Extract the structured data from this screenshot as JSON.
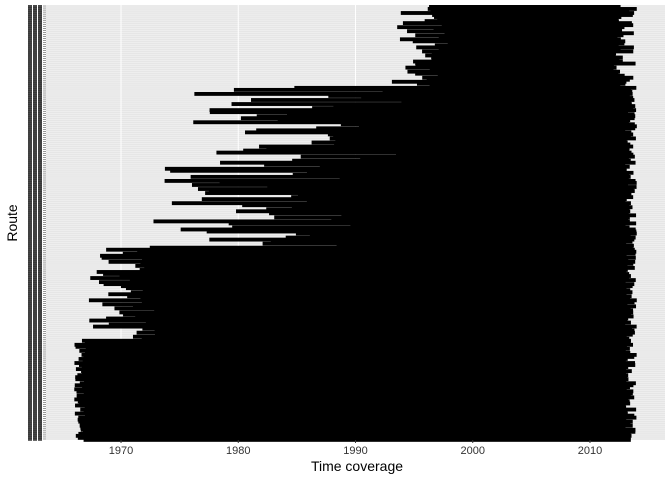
{
  "chart_data": {
    "type": "range-bar",
    "xlabel": "Time coverage",
    "ylabel": "Route",
    "xlim": [
      1963.6,
      2016.4
    ],
    "x_ticks": [
      1970,
      1980,
      1990,
      2000,
      2010
    ],
    "row_count": 215,
    "grid": true,
    "background": "#e6e6e6",
    "bar_color": "#000000",
    "legend": "none",
    "density_note": "Route tick labels are illegible (overplotted). Ranges approximated.",
    "bands": [
      {
        "rows": 40,
        "start": [
          1993,
          1998
        ],
        "end": [
          2012,
          2014
        ]
      },
      {
        "rows": 40,
        "start": [
          1976,
          1994
        ],
        "end": [
          2013,
          2014
        ]
      },
      {
        "rows": 40,
        "start": [
          1972,
          1990
        ],
        "end": [
          2013,
          2014
        ]
      },
      {
        "rows": 45,
        "start": [
          1967,
          1973
        ],
        "end": [
          2013,
          2014
        ]
      },
      {
        "rows": 50,
        "start": [
          1966,
          1967
        ],
        "end": [
          2013,
          2014
        ]
      }
    ]
  },
  "colors": {
    "panel": "#e6e6e6",
    "grid": "#ffffff",
    "bar": "#000000",
    "text": "#333333",
    "axis_title": "#000000"
  }
}
